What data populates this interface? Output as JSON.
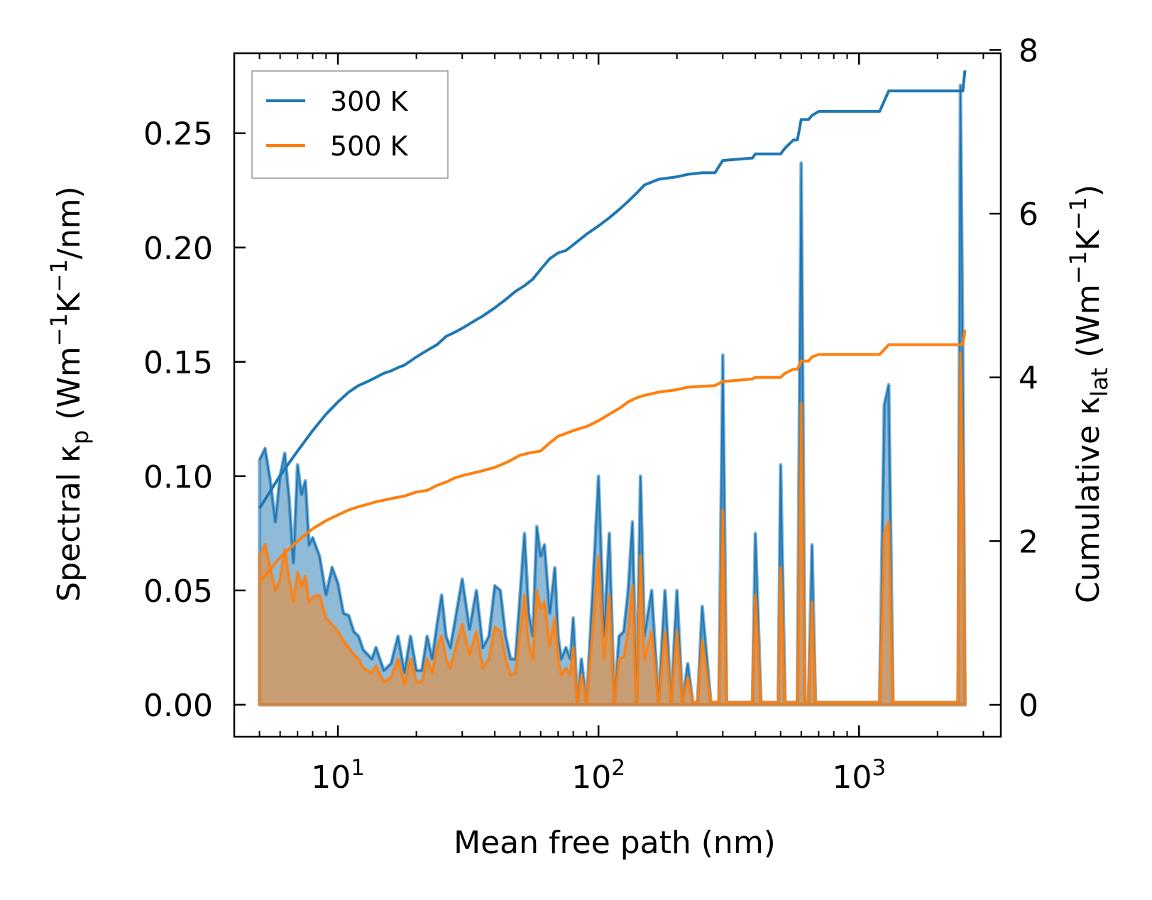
{
  "chart_data": {
    "type": "line",
    "title": "",
    "xlabel": "Mean free path (nm)",
    "x_scale": "log",
    "xlim": [
      4,
      3500
    ],
    "x_ticks": [
      10,
      100,
      1000
    ],
    "x_tick_labels": [
      {
        "base": "10",
        "exp": "1"
      },
      {
        "base": "10",
        "exp": "2"
      },
      {
        "base": "10",
        "exp": "3"
      }
    ],
    "ylabel_left": {
      "pre": "Spectral κ",
      "sub": "p",
      "unit_open": " (Wm",
      "e1": "−1",
      "k": "K",
      "e2": "−1",
      "unit_close": "/nm)"
    },
    "ylim_left": [
      -0.014,
      0.285
    ],
    "y_ticks_left": [
      0.0,
      0.05,
      0.1,
      0.15,
      0.2,
      0.25
    ],
    "y_tick_labels_left": [
      "0.00",
      "0.05",
      "0.10",
      "0.15",
      "0.20",
      "0.25"
    ],
    "ylabel_right": {
      "pre": "Cumulative κ",
      "sub": "lat",
      "unit_open": " (Wm",
      "e1": "−1",
      "k": "K",
      "e2": "−1",
      "unit_close": ")"
    },
    "ylim_right": [
      -0.39,
      7.96
    ],
    "y_ticks_right": [
      0,
      2,
      4,
      6,
      8
    ],
    "y_tick_labels_right": [
      "0",
      "2",
      "4",
      "6",
      "8"
    ],
    "legend_position": "top-left",
    "colors": {
      "blue": "#1f77b4",
      "orange": "#ff7f0e"
    },
    "spectral": {
      "x": [
        5,
        5.25,
        5.5,
        5.75,
        6,
        6.25,
        6.5,
        6.75,
        7,
        7.25,
        7.5,
        7.75,
        8,
        8.5,
        9,
        9.5,
        10,
        10.5,
        11,
        11.5,
        12,
        12.5,
        13,
        13.5,
        14,
        15,
        16,
        17,
        18,
        19,
        20,
        21,
        22,
        23,
        24,
        25,
        26,
        27,
        28,
        30,
        32,
        34,
        36,
        38,
        40,
        42,
        44,
        46,
        48,
        50,
        52,
        54,
        56,
        58,
        60,
        62,
        65,
        68,
        70,
        72,
        75,
        78,
        80,
        83,
        86,
        90,
        95,
        100,
        105,
        110,
        115,
        120,
        125,
        130,
        135,
        140,
        145,
        150,
        160,
        170,
        180,
        190,
        200,
        210,
        220,
        230,
        240,
        250,
        270,
        290,
        300,
        310,
        330,
        360,
        380,
        390,
        400,
        420,
        460,
        490,
        500,
        520,
        560,
        580,
        600,
        620,
        640,
        660,
        680,
        700,
        720,
        1000,
        1200,
        1250,
        1300,
        1350,
        1400,
        2400,
        2450,
        2500,
        2550
      ],
      "series": [
        {
          "name": "300 K",
          "values": [
            0.107,
            0.112,
            0.098,
            0.08,
            0.1,
            0.11,
            0.09,
            0.062,
            0.105,
            0.092,
            0.098,
            0.07,
            0.073,
            0.065,
            0.048,
            0.06,
            0.053,
            0.04,
            0.039,
            0.032,
            0.03,
            0.024,
            0.022,
            0.02,
            0.025,
            0.015,
            0.018,
            0.03,
            0.014,
            0.03,
            0.015,
            0.015,
            0.03,
            0.02,
            0.035,
            0.048,
            0.03,
            0.025,
            0.035,
            0.055,
            0.033,
            0.05,
            0.025,
            0.03,
            0.052,
            0.05,
            0.03,
            0.02,
            0.02,
            0.048,
            0.075,
            0.04,
            0.03,
            0.078,
            0.065,
            0.07,
            0.04,
            0.06,
            0.03,
            0.02,
            0.025,
            0.02,
            0.038,
            0.001,
            0.02,
            0.001,
            0.05,
            0.1,
            0.03,
            0.075,
            0.001,
            0.03,
            0.032,
            0.05,
            0.08,
            0.001,
            0.1,
            0.03,
            0.05,
            0.001,
            0.05,
            0.001,
            0.05,
            0.001,
            0.018,
            0.001,
            0.001,
            0.043,
            0.001,
            0.001,
            0.153,
            0.001,
            0.001,
            0.001,
            0.001,
            0.001,
            0.075,
            0.001,
            0.001,
            0.001,
            0.105,
            0.001,
            0.001,
            0.001,
            0.237,
            0.001,
            0.001,
            0.07,
            0.001,
            0.001,
            0.001,
            0.001,
            0.001,
            0.131,
            0.14,
            0.001,
            0.001,
            0.001,
            0.271,
            0.154,
            0.001
          ]
        },
        {
          "name": "500 K",
          "values": [
            0.065,
            0.07,
            0.06,
            0.05,
            0.055,
            0.068,
            0.055,
            0.045,
            0.058,
            0.052,
            0.056,
            0.045,
            0.047,
            0.048,
            0.038,
            0.035,
            0.032,
            0.028,
            0.025,
            0.022,
            0.02,
            0.016,
            0.015,
            0.014,
            0.017,
            0.01,
            0.012,
            0.02,
            0.009,
            0.02,
            0.01,
            0.01,
            0.02,
            0.014,
            0.025,
            0.03,
            0.02,
            0.016,
            0.023,
            0.035,
            0.022,
            0.032,
            0.016,
            0.02,
            0.034,
            0.032,
            0.02,
            0.013,
            0.014,
            0.031,
            0.048,
            0.026,
            0.02,
            0.05,
            0.042,
            0.045,
            0.026,
            0.038,
            0.02,
            0.013,
            0.016,
            0.013,
            0.025,
            0.001,
            0.013,
            0.001,
            0.032,
            0.065,
            0.02,
            0.048,
            0.001,
            0.02,
            0.021,
            0.032,
            0.052,
            0.001,
            0.065,
            0.02,
            0.032,
            0.001,
            0.032,
            0.001,
            0.032,
            0.001,
            0.012,
            0.001,
            0.001,
            0.028,
            0.001,
            0.001,
            0.085,
            0.001,
            0.001,
            0.001,
            0.001,
            0.001,
            0.048,
            0.001,
            0.001,
            0.001,
            0.06,
            0.001,
            0.001,
            0.001,
            0.132,
            0.001,
            0.001,
            0.045,
            0.001,
            0.001,
            0.001,
            0.001,
            0.001,
            0.075,
            0.08,
            0.001,
            0.001,
            0.001,
            0.154,
            0.098,
            0.001
          ]
        }
      ]
    },
    "cumulative": {
      "series": [
        {
          "name": "300 K",
          "x": [
            5,
            6,
            7,
            8,
            9,
            10,
            11,
            12,
            13,
            14,
            15,
            16,
            17,
            18,
            19,
            20,
            22,
            24,
            26,
            28,
            30,
            33,
            36,
            40,
            44,
            48,
            52,
            56,
            60,
            65,
            70,
            75,
            80,
            90,
            100,
            110,
            120,
            130,
            140,
            150,
            170,
            200,
            220,
            250,
            280,
            300,
            390,
            400,
            500,
            520,
            560,
            580,
            600,
            640,
            660,
            700,
            1100,
            1200,
            1300,
            1500,
            2400,
            2500,
            2550
          ],
          "values": [
            2.4,
            2.8,
            3.1,
            3.35,
            3.55,
            3.7,
            3.82,
            3.9,
            3.95,
            4.0,
            4.05,
            4.08,
            4.12,
            4.15,
            4.2,
            4.25,
            4.33,
            4.4,
            4.5,
            4.55,
            4.6,
            4.68,
            4.75,
            4.85,
            4.95,
            5.05,
            5.12,
            5.2,
            5.32,
            5.45,
            5.52,
            5.55,
            5.62,
            5.75,
            5.85,
            5.95,
            6.05,
            6.15,
            6.25,
            6.35,
            6.42,
            6.45,
            6.48,
            6.5,
            6.5,
            6.65,
            6.68,
            6.73,
            6.73,
            6.8,
            6.9,
            6.9,
            7.15,
            7.15,
            7.2,
            7.25,
            7.25,
            7.25,
            7.5,
            7.5,
            7.5,
            7.5,
            7.75
          ]
        },
        {
          "name": "500 K",
          "x": [
            5,
            6,
            7,
            8,
            9,
            10,
            11,
            12,
            13,
            14,
            15,
            16,
            18,
            20,
            22,
            24,
            26,
            28,
            30,
            35,
            40,
            45,
            50,
            55,
            60,
            65,
            70,
            80,
            90,
            100,
            110,
            120,
            130,
            140,
            150,
            170,
            200,
            220,
            280,
            300,
            390,
            400,
            500,
            520,
            560,
            580,
            600,
            640,
            660,
            700,
            1100,
            1200,
            1300,
            1500,
            2400,
            2500,
            2550
          ],
          "values": [
            1.5,
            1.8,
            2.0,
            2.15,
            2.25,
            2.32,
            2.38,
            2.42,
            2.45,
            2.48,
            2.5,
            2.52,
            2.55,
            2.6,
            2.62,
            2.68,
            2.72,
            2.77,
            2.8,
            2.85,
            2.9,
            2.97,
            3.05,
            3.08,
            3.1,
            3.2,
            3.28,
            3.35,
            3.4,
            3.47,
            3.55,
            3.62,
            3.7,
            3.75,
            3.78,
            3.82,
            3.85,
            3.88,
            3.9,
            3.95,
            3.98,
            4.0,
            4.0,
            4.05,
            4.1,
            4.1,
            4.2,
            4.2,
            4.25,
            4.28,
            4.28,
            4.28,
            4.4,
            4.4,
            4.4,
            4.4,
            4.58
          ]
        }
      ]
    },
    "legend": [
      {
        "label": "300 K",
        "color": "#1f77b4"
      },
      {
        "label": "500 K",
        "color": "#ff7f0e"
      }
    ]
  }
}
